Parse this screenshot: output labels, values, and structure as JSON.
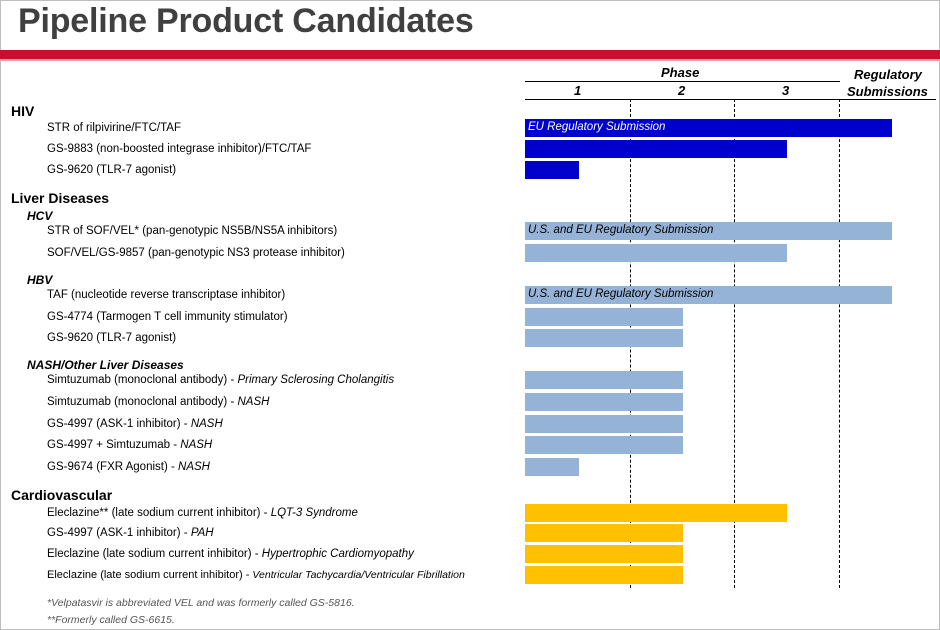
{
  "title": "Pipeline Product Candidates",
  "colors": {
    "hiv": "#0000cc",
    "liver": "#95b3d7",
    "cardio": "#ffc000",
    "accent": "#c8102e"
  },
  "header": {
    "phase_label": "Phase",
    "phase_numbers": [
      "1",
      "2",
      "3"
    ],
    "regulatory_line1": "Regulatory",
    "regulatory_line2": "Submissions"
  },
  "sections": {
    "hiv": "HIV",
    "liver": "Liver Diseases",
    "hcv": "HCV",
    "hbv": "HBV",
    "nash": "NASH/Other Liver Diseases",
    "cardio": "Cardiovascular"
  },
  "rows": [
    {
      "name": "STR of rilpivirine/FTC/TAF",
      "indication": "",
      "stage": "Regulatory Submission",
      "bar_label": "EU Regulatory Submission"
    },
    {
      "name": "GS-9883 (non-boosted integrase inhibitor)/FTC/TAF",
      "indication": "",
      "stage": "Phase 3",
      "bar_label": ""
    },
    {
      "name": "GS-9620 (TLR-7 agonist)",
      "indication": "",
      "stage": "Phase 1",
      "bar_label": ""
    },
    {
      "name": "STR of SOF/VEL* (pan-genotypic NS5B/NS5A inhibitors)",
      "indication": "",
      "stage": "Regulatory Submission",
      "bar_label": "U.S. and EU Regulatory Submission"
    },
    {
      "name": "SOF/VEL/GS-9857 (pan-genotypic NS3 protease inhibitor)",
      "indication": "",
      "stage": "Phase 3",
      "bar_label": ""
    },
    {
      "name": "TAF (nucleotide reverse transcriptase inhibitor)",
      "indication": "",
      "stage": "Regulatory Submission",
      "bar_label": "U.S. and EU Regulatory Submission"
    },
    {
      "name": "GS-4774 (Tarmogen T cell immunity stimulator)",
      "indication": "",
      "stage": "Phase 2",
      "bar_label": ""
    },
    {
      "name": "GS-9620 (TLR-7 agonist)",
      "indication": "",
      "stage": "Phase 2",
      "bar_label": ""
    },
    {
      "name": "Simtuzumab (monoclonal antibody) - ",
      "indication": "Primary Sclerosing Cholangitis",
      "stage": "Phase 2",
      "bar_label": ""
    },
    {
      "name": "Simtuzumab (monoclonal antibody) - ",
      "indication": "NASH",
      "stage": "Phase 2",
      "bar_label": ""
    },
    {
      "name": "GS-4997 (ASK-1 inhibitor) - ",
      "indication": "NASH",
      "stage": "Phase 2",
      "bar_label": ""
    },
    {
      "name": "GS-4997 + Simtuzumab - ",
      "indication": "NASH",
      "stage": "Phase 2",
      "bar_label": ""
    },
    {
      "name": "GS-9674 (FXR Agonist) - ",
      "indication": "NASH",
      "stage": "Phase 1",
      "bar_label": ""
    },
    {
      "name": "Eleclazine** (late sodium current inhibitor) - ",
      "indication": "LQT-3 Syndrome",
      "stage": "Phase 3",
      "bar_label": ""
    },
    {
      "name": "GS-4997 (ASK-1 inhibitor) - ",
      "indication": "PAH",
      "stage": "Phase 2",
      "bar_label": ""
    },
    {
      "name": "Eleclazine (late sodium current inhibitor) - ",
      "indication": "Hypertrophic Cardiomyopathy",
      "stage": "Phase 2",
      "bar_label": ""
    },
    {
      "name": "Eleclazine (late sodium current inhibitor) - ",
      "indication": "Ventricular Tachycardia/Ventricular Fibrillation",
      "stage": "Phase 2",
      "bar_label": ""
    }
  ],
  "footnotes": [
    "*Velpatasvir is abbreviated VEL and was formerly called GS-5816.",
    "**Formerly called GS-6615."
  ]
}
